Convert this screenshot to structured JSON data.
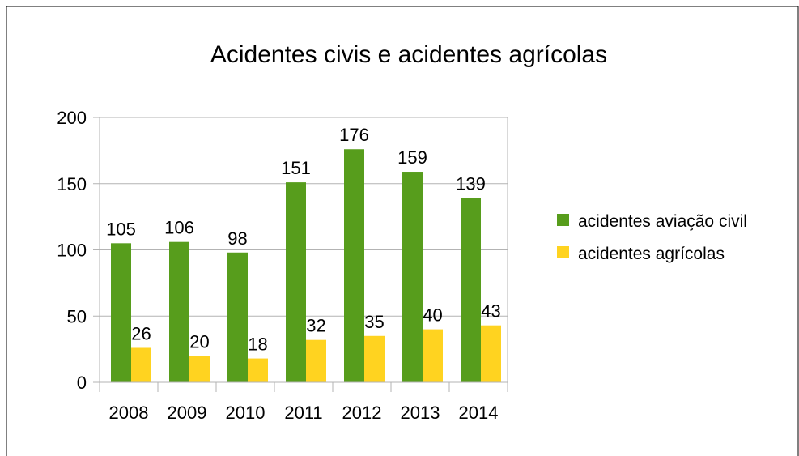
{
  "chart_data": {
    "type": "bar",
    "title": "Acidentes civis e acidentes agrícolas",
    "categories": [
      "2008",
      "2009",
      "2010",
      "2011",
      "2012",
      "2013",
      "2014"
    ],
    "series": [
      {
        "name": "acidentes aviação civil",
        "color": "#579d1c",
        "values": [
          105,
          106,
          98,
          151,
          176,
          159,
          139
        ]
      },
      {
        "name": "acidentes agrícolas",
        "color": "#ffd320",
        "values": [
          26,
          20,
          18,
          32,
          35,
          40,
          43
        ]
      }
    ],
    "ylim": [
      0,
      200
    ],
    "yticks": [
      0,
      50,
      100,
      150,
      200
    ],
    "xlabel": "",
    "ylabel": "",
    "grid": true,
    "legend_position": "right",
    "data_labels": true
  }
}
